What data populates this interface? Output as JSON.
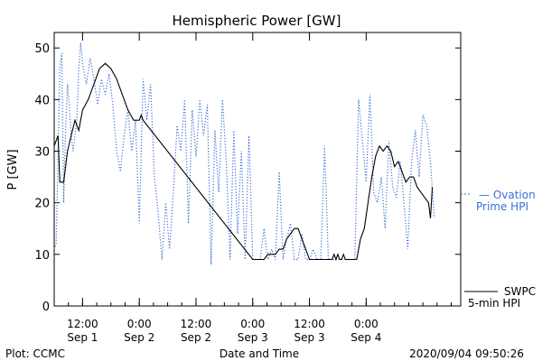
{
  "chart_data": {
    "type": "line",
    "title": "Hemispheric Power [GW]",
    "xlabel": "Date and Time",
    "ylabel": "P [GW]",
    "ylim": [
      0,
      53
    ],
    "xlim": [
      "2020-09-01 06:00",
      "2020-09-04 20:00"
    ],
    "x_ticks": [
      {
        "time": "2020-09-01 12:00",
        "line1": "12:00",
        "line2": "Sep 1"
      },
      {
        "time": "2020-09-02 00:00",
        "line1": "0:00",
        "line2": "Sep 2"
      },
      {
        "time": "2020-09-02 12:00",
        "line1": "12:00",
        "line2": "Sep 2"
      },
      {
        "time": "2020-09-03 00:00",
        "line1": "0:00",
        "line2": "Sep 3"
      },
      {
        "time": "2020-09-03 12:00",
        "line1": "12:00",
        "line2": "Sep 3"
      },
      {
        "time": "2020-09-04 00:00",
        "line1": "0:00",
        "line2": "Sep 4"
      }
    ],
    "y_ticks": [
      0,
      10,
      20,
      30,
      40,
      50
    ],
    "grid": false,
    "series": [
      {
        "name_lines": [
          "SWPC",
          "5-min HPI"
        ],
        "color": "#000000",
        "style": "solid",
        "points": [
          [
            "2020-09-01 06:00",
            31
          ],
          [
            "2020-09-01 06:48",
            33
          ],
          [
            "2020-09-01 07:12",
            24
          ],
          [
            "2020-09-01 08:00",
            24
          ],
          [
            "2020-09-01 08:48",
            30
          ],
          [
            "2020-09-01 09:36",
            33
          ],
          [
            "2020-09-01 10:24",
            36
          ],
          [
            "2020-09-01 11:12",
            34
          ],
          [
            "2020-09-01 12:00",
            38
          ],
          [
            "2020-09-01 13:12",
            40
          ],
          [
            "2020-09-01 14:24",
            43
          ],
          [
            "2020-09-01 15:36",
            46
          ],
          [
            "2020-09-01 16:48",
            47
          ],
          [
            "2020-09-01 18:00",
            46
          ],
          [
            "2020-09-01 19:12",
            44
          ],
          [
            "2020-09-01 20:24",
            41
          ],
          [
            "2020-09-01 21:36",
            38
          ],
          [
            "2020-09-01 22:48",
            36
          ],
          [
            "2020-09-02 00:00",
            36
          ],
          [
            "2020-09-02 00:24",
            37
          ],
          [
            "2020-09-02 00:48",
            36
          ],
          [
            "2020-09-03 00:00",
            9
          ],
          [
            "2020-09-03 02:24",
            9
          ],
          [
            "2020-09-03 03:12",
            10
          ],
          [
            "2020-09-03 04:48",
            10
          ],
          [
            "2020-09-03 05:36",
            11
          ],
          [
            "2020-09-03 06:24",
            11
          ],
          [
            "2020-09-03 07:12",
            13
          ],
          [
            "2020-09-03 08:00",
            14
          ],
          [
            "2020-09-03 08:48",
            15
          ],
          [
            "2020-09-03 09:36",
            15
          ],
          [
            "2020-09-03 10:24",
            13
          ],
          [
            "2020-09-03 11:12",
            11
          ],
          [
            "2020-09-03 12:00",
            9
          ],
          [
            "2020-09-03 16:48",
            9
          ],
          [
            "2020-09-03 17:12",
            10
          ],
          [
            "2020-09-03 17:36",
            9
          ],
          [
            "2020-09-03 18:00",
            10
          ],
          [
            "2020-09-03 18:24",
            9
          ],
          [
            "2020-09-03 18:48",
            9
          ],
          [
            "2020-09-03 19:12",
            10
          ],
          [
            "2020-09-03 19:36",
            9
          ],
          [
            "2020-09-03 21:36",
            9
          ],
          [
            "2020-09-03 22:00",
            9
          ],
          [
            "2020-09-03 22:48",
            13
          ],
          [
            "2020-09-03 23:36",
            15
          ],
          [
            "2020-09-04 00:24",
            20
          ],
          [
            "2020-09-04 01:12",
            25
          ],
          [
            "2020-09-04 02:00",
            29
          ],
          [
            "2020-09-04 02:48",
            31
          ],
          [
            "2020-09-04 03:36",
            30
          ],
          [
            "2020-09-04 04:24",
            31
          ],
          [
            "2020-09-04 05:12",
            30
          ],
          [
            "2020-09-04 06:00",
            27
          ],
          [
            "2020-09-04 06:48",
            28
          ],
          [
            "2020-09-04 07:36",
            26
          ],
          [
            "2020-09-04 08:24",
            24
          ],
          [
            "2020-09-04 09:12",
            25
          ],
          [
            "2020-09-04 10:00",
            25
          ],
          [
            "2020-09-04 10:48",
            23
          ],
          [
            "2020-09-04 11:36",
            22
          ],
          [
            "2020-09-04 12:24",
            21
          ],
          [
            "2020-09-04 13:12",
            20
          ],
          [
            "2020-09-04 13:36",
            17
          ],
          [
            "2020-09-04 14:00",
            23
          ]
        ]
      },
      {
        "name_lines": [
          "— Ovation",
          "Prime HPI"
        ],
        "color": "#3a6fd8",
        "style": "dotted",
        "points": [
          [
            "2020-09-01 06:00",
            11
          ],
          [
            "2020-09-01 06:24",
            12
          ],
          [
            "2020-09-01 06:48",
            28
          ],
          [
            "2020-09-01 07:12",
            46
          ],
          [
            "2020-09-01 07:36",
            49
          ],
          [
            "2020-09-01 08:00",
            20
          ],
          [
            "2020-09-01 08:24",
            34
          ],
          [
            "2020-09-01 08:48",
            43
          ],
          [
            "2020-09-01 09:12",
            39
          ],
          [
            "2020-09-01 09:36",
            33
          ],
          [
            "2020-09-01 10:00",
            30
          ],
          [
            "2020-09-01 10:24",
            33
          ],
          [
            "2020-09-01 10:48",
            36
          ],
          [
            "2020-09-01 11:12",
            46
          ],
          [
            "2020-09-01 11:36",
            51
          ],
          [
            "2020-09-01 12:00",
            47
          ],
          [
            "2020-09-01 12:48",
            43
          ],
          [
            "2020-09-01 13:36",
            48
          ],
          [
            "2020-09-01 14:24",
            44
          ],
          [
            "2020-09-01 15:12",
            39
          ],
          [
            "2020-09-01 16:00",
            44
          ],
          [
            "2020-09-01 16:48",
            41
          ],
          [
            "2020-09-01 17:36",
            45
          ],
          [
            "2020-09-01 18:24",
            39
          ],
          [
            "2020-09-01 19:12",
            30
          ],
          [
            "2020-09-01 20:00",
            26
          ],
          [
            "2020-09-01 20:48",
            33
          ],
          [
            "2020-09-01 21:36",
            38
          ],
          [
            "2020-09-01 22:24",
            30
          ],
          [
            "2020-09-01 23:12",
            36
          ],
          [
            "2020-09-02 00:00",
            16
          ],
          [
            "2020-09-02 00:48",
            44
          ],
          [
            "2020-09-02 01:36",
            36
          ],
          [
            "2020-09-02 02:24",
            43
          ],
          [
            "2020-09-02 03:12",
            25
          ],
          [
            "2020-09-02 04:00",
            18
          ],
          [
            "2020-09-02 04:48",
            9
          ],
          [
            "2020-09-02 05:36",
            20
          ],
          [
            "2020-09-02 06:24",
            11
          ],
          [
            "2020-09-02 07:12",
            22
          ],
          [
            "2020-09-02 08:00",
            35
          ],
          [
            "2020-09-02 08:48",
            30
          ],
          [
            "2020-09-02 09:36",
            40
          ],
          [
            "2020-09-02 10:24",
            16
          ],
          [
            "2020-09-02 11:12",
            38
          ],
          [
            "2020-09-02 12:00",
            29
          ],
          [
            "2020-09-02 12:48",
            40
          ],
          [
            "2020-09-02 13:36",
            33
          ],
          [
            "2020-09-02 14:24",
            39
          ],
          [
            "2020-09-02 15:12",
            8
          ],
          [
            "2020-09-02 16:00",
            34
          ],
          [
            "2020-09-02 16:48",
            22
          ],
          [
            "2020-09-02 17:36",
            40
          ],
          [
            "2020-09-02 18:24",
            28
          ],
          [
            "2020-09-02 19:12",
            9
          ],
          [
            "2020-09-02 20:00",
            34
          ],
          [
            "2020-09-02 20:48",
            14
          ],
          [
            "2020-09-02 21:36",
            30
          ],
          [
            "2020-09-02 22:24",
            9
          ],
          [
            "2020-09-02 23:12",
            33
          ],
          [
            "2020-09-03 00:00",
            9
          ],
          [
            "2020-09-03 00:48",
            9
          ],
          [
            "2020-09-03 01:36",
            9
          ],
          [
            "2020-09-03 02:24",
            15
          ],
          [
            "2020-09-03 03:12",
            9
          ],
          [
            "2020-09-03 04:00",
            11
          ],
          [
            "2020-09-03 04:48",
            9
          ],
          [
            "2020-09-03 05:36",
            26
          ],
          [
            "2020-09-03 06:24",
            9
          ],
          [
            "2020-09-03 07:12",
            13
          ],
          [
            "2020-09-03 08:00",
            16
          ],
          [
            "2020-09-03 08:48",
            9
          ],
          [
            "2020-09-03 09:36",
            9
          ],
          [
            "2020-09-03 10:24",
            14
          ],
          [
            "2020-09-03 11:12",
            9
          ],
          [
            "2020-09-03 12:00",
            9
          ],
          [
            "2020-09-03 12:48",
            11
          ],
          [
            "2020-09-03 13:36",
            9
          ],
          [
            "2020-09-03 14:24",
            9
          ],
          [
            "2020-09-03 15:12",
            31
          ],
          [
            "2020-09-03 16:00",
            9
          ],
          [
            "2020-09-03 16:48",
            9
          ],
          [
            "2020-09-03 17:36",
            9
          ],
          [
            "2020-09-03 18:24",
            9
          ],
          [
            "2020-09-03 19:12",
            9
          ],
          [
            "2020-09-03 20:00",
            9
          ],
          [
            "2020-09-03 20:48",
            9
          ],
          [
            "2020-09-03 21:36",
            9
          ],
          [
            "2020-09-03 22:24",
            40
          ],
          [
            "2020-09-03 23:12",
            32
          ],
          [
            "2020-09-04 00:00",
            24
          ],
          [
            "2020-09-04 00:48",
            41
          ],
          [
            "2020-09-04 01:36",
            22
          ],
          [
            "2020-09-04 02:24",
            20
          ],
          [
            "2020-09-04 03:12",
            25
          ],
          [
            "2020-09-04 04:00",
            15
          ],
          [
            "2020-09-04 04:48",
            32
          ],
          [
            "2020-09-04 05:36",
            23
          ],
          [
            "2020-09-04 06:24",
            21
          ],
          [
            "2020-09-04 07:12",
            28
          ],
          [
            "2020-09-04 08:00",
            20
          ],
          [
            "2020-09-04 08:48",
            11
          ],
          [
            "2020-09-04 09:36",
            28
          ],
          [
            "2020-09-04 10:24",
            34
          ],
          [
            "2020-09-04 11:12",
            25
          ],
          [
            "2020-09-04 12:00",
            37
          ],
          [
            "2020-09-04 12:48",
            35
          ],
          [
            "2020-09-04 13:36",
            28
          ],
          [
            "2020-09-04 14:24",
            17
          ]
        ]
      }
    ]
  },
  "footer": {
    "left": "Plot: CCMC",
    "center": "Date and Time",
    "right": "2020/09/04 09:50:26"
  }
}
